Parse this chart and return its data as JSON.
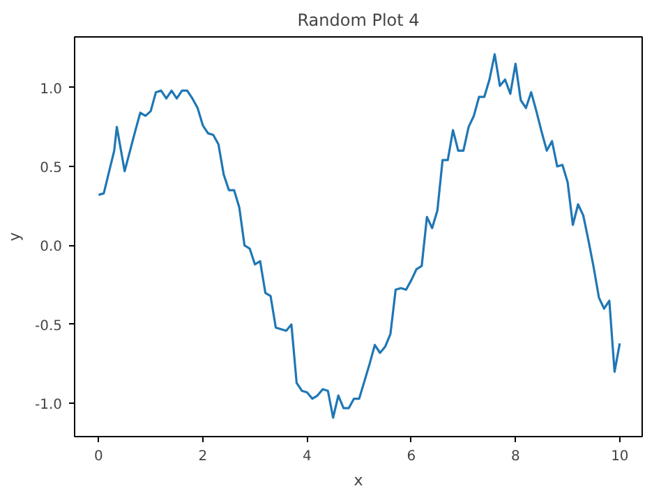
{
  "chart_data": {
    "type": "line",
    "title": "Random Plot 4",
    "xlabel": "x",
    "ylabel": "y",
    "x": [
      0,
      0.1,
      0.3,
      0.35,
      0.5,
      0.7,
      0.8,
      0.9,
      1.0,
      1.1,
      1.2,
      1.3,
      1.4,
      1.5,
      1.6,
      1.7,
      1.8,
      1.9,
      2.0,
      2.1,
      2.2,
      2.3,
      2.4,
      2.5,
      2.6,
      2.7,
      2.8,
      2.9,
      3.0,
      3.1,
      3.2,
      3.3,
      3.4,
      3.5,
      3.6,
      3.7,
      3.8,
      3.9,
      4.0,
      4.1,
      4.2,
      4.3,
      4.4,
      4.5,
      4.6,
      4.7,
      4.8,
      4.9,
      5.0,
      5.1,
      5.2,
      5.3,
      5.4,
      5.5,
      5.6,
      5.7,
      5.8,
      5.9,
      6.0,
      6.1,
      6.2,
      6.3,
      6.4,
      6.5,
      6.6,
      6.7,
      6.8,
      6.9,
      7.0,
      7.1,
      7.2,
      7.3,
      7.4,
      7.5,
      7.6,
      7.7,
      7.8,
      7.9,
      8.0,
      8.1,
      8.2,
      8.3,
      8.4,
      8.5,
      8.6,
      8.7,
      8.8,
      8.9,
      9.0,
      9.1,
      9.2,
      9.3,
      9.4,
      9.5,
      9.6,
      9.7,
      9.8,
      9.9,
      10.0
    ],
    "series": [
      {
        "color": "#1f77b4",
        "values": [
          0.32,
          0.33,
          0.6,
          0.75,
          0.47,
          0.72,
          0.84,
          0.82,
          0.85,
          0.97,
          0.98,
          0.93,
          0.98,
          0.93,
          0.98,
          0.98,
          0.93,
          0.87,
          0.76,
          0.71,
          0.7,
          0.64,
          0.45,
          0.35,
          0.35,
          0.24,
          0.0,
          -0.02,
          -0.12,
          -0.1,
          -0.3,
          -0.32,
          -0.52,
          -0.53,
          -0.54,
          -0.5,
          -0.87,
          -0.92,
          -0.93,
          -0.97,
          -0.95,
          -0.91,
          -0.92,
          -1.09,
          -0.95,
          -1.03,
          -1.03,
          -0.97,
          -0.97,
          -0.86,
          -0.75,
          -0.63,
          -0.68,
          -0.64,
          -0.56,
          -0.28,
          -0.27,
          -0.28,
          -0.22,
          -0.15,
          -0.13,
          0.18,
          0.11,
          0.22,
          0.54,
          0.54,
          0.73,
          0.6,
          0.6,
          0.75,
          0.82,
          0.94,
          0.94,
          1.05,
          1.21,
          1.01,
          1.05,
          0.96,
          1.15,
          0.92,
          0.87,
          0.97,
          0.85,
          0.72,
          0.6,
          0.66,
          0.5,
          0.51,
          0.4,
          0.13,
          0.26,
          0.19,
          0.03,
          -0.14,
          -0.33,
          -0.4,
          -0.35,
          -0.8,
          -0.62
        ]
      }
    ],
    "xlim": [
      -0.46,
      10.43
    ],
    "ylim": [
      -1.21,
      1.32
    ],
    "xticks": [
      0,
      2,
      4,
      6,
      8,
      10
    ],
    "yticks": [
      {
        "value": -1.0,
        "label": "-1.0"
      },
      {
        "value": -0.5,
        "label": "-0.5"
      },
      {
        "value": 0.0,
        "label": "0.0"
      },
      {
        "value": 0.5,
        "label": "0.5"
      },
      {
        "value": 1.0,
        "label": "1.0"
      }
    ],
    "grid": false,
    "marker": "none",
    "line_style": "solid"
  }
}
